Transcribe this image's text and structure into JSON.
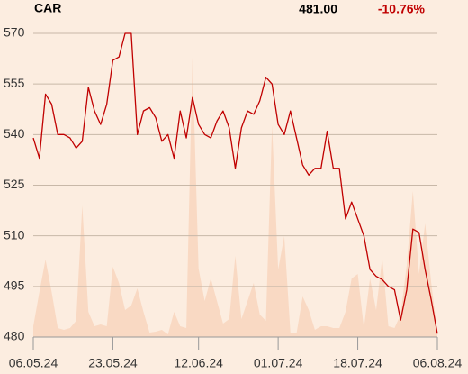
{
  "chart_data": {
    "type": "line",
    "symbol": "CAR",
    "last": "481.00",
    "change": "-10.76%",
    "x": [
      "06.05.24",
      "07.05.24",
      "08.05.24",
      "09.05.24",
      "10.05.24",
      "13.05.24",
      "14.05.24",
      "15.05.24",
      "16.05.24",
      "17.05.24",
      "20.05.24",
      "21.05.24",
      "22.05.24",
      "23.05.24",
      "24.05.24",
      "27.05.24",
      "28.05.24",
      "29.05.24",
      "30.05.24",
      "31.05.24",
      "03.06.24",
      "04.06.24",
      "05.06.24",
      "06.06.24",
      "07.06.24",
      "10.06.24",
      "11.06.24",
      "12.06.24",
      "13.06.24",
      "14.06.24",
      "17.06.24",
      "18.06.24",
      "19.06.24",
      "20.06.24",
      "21.06.24",
      "24.06.24",
      "25.06.24",
      "26.06.24",
      "27.06.24",
      "28.06.24",
      "01.07.24",
      "02.07.24",
      "03.07.24",
      "04.07.24",
      "05.07.24",
      "08.07.24",
      "09.07.24",
      "10.07.24",
      "11.07.24",
      "12.07.24",
      "15.07.24",
      "16.07.24",
      "17.07.24",
      "18.07.24",
      "19.07.24",
      "22.07.24",
      "23.07.24",
      "24.07.24",
      "25.07.24",
      "26.07.24",
      "29.07.24",
      "30.07.24",
      "31.07.24",
      "01.08.24",
      "02.08.24",
      "05.08.24",
      "06.08.24"
    ],
    "values": [
      539,
      533,
      552,
      549,
      540,
      540,
      539,
      536,
      538,
      554,
      547,
      543,
      549,
      562,
      563,
      570,
      570,
      540,
      547,
      548,
      545,
      538,
      540,
      533,
      547,
      539,
      551,
      543,
      540,
      539,
      544,
      547,
      542,
      530,
      542,
      547,
      546,
      550,
      557,
      555,
      543,
      540,
      547,
      539,
      531,
      528,
      530,
      530,
      541,
      530,
      530,
      515,
      520,
      515,
      510,
      500,
      498,
      497,
      495,
      494,
      485,
      494,
      512,
      511,
      500,
      491,
      481
    ],
    "volume": [
      12,
      50,
      86,
      50,
      10,
      8,
      10,
      18,
      146,
      28,
      12,
      14,
      12,
      78,
      60,
      30,
      35,
      54,
      28,
      5,
      6,
      8,
      3,
      28,
      12,
      10,
      310,
      76,
      40,
      65,
      40,
      15,
      20,
      90,
      20,
      40,
      60,
      25,
      18,
      235,
      75,
      112,
      5,
      4,
      45,
      30,
      8,
      12,
      12,
      10,
      10,
      28,
      65,
      70,
      10,
      65,
      30,
      88,
      12,
      10,
      25,
      80,
      162,
      70,
      126,
      60,
      5
    ],
    "color": "#c00000",
    "change_color": "#c00000",
    "volume_color": "#f9d9c3",
    "ylim": [
      480,
      570
    ],
    "yticks": [
      480,
      495,
      510,
      525,
      540,
      555,
      570
    ],
    "grid": true,
    "xticks": [
      "06.05.24",
      "23.05.24",
      "12.06.24",
      "01.07.24",
      "18.07.24",
      "06.08.24"
    ]
  }
}
